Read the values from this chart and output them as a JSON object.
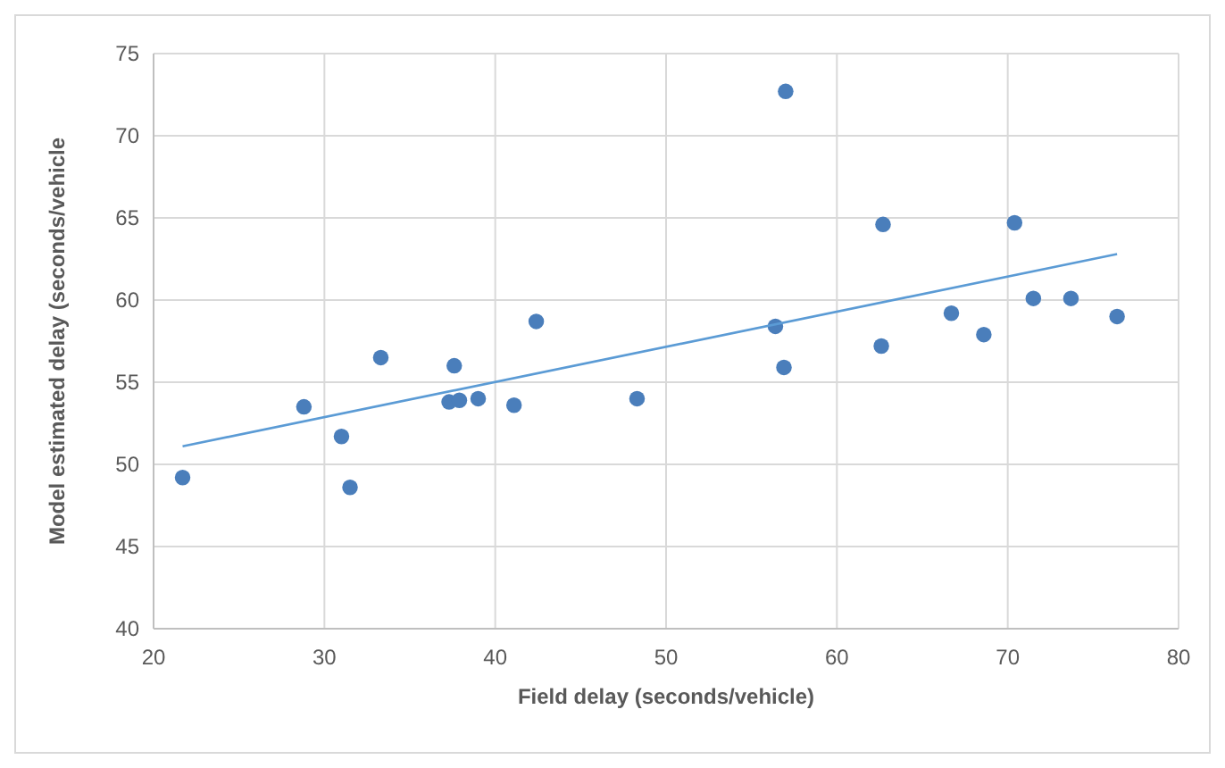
{
  "chart_data": {
    "type": "scatter",
    "xlabel": "Field delay (seconds/vehicle)",
    "ylabel": "Model estimated delay (seconds/vehicle",
    "xlim": [
      20,
      80
    ],
    "xticks": [
      20,
      30,
      40,
      50,
      60,
      70,
      80
    ],
    "ylim": [
      40,
      75
    ],
    "yticks": [
      40,
      45,
      50,
      55,
      60,
      65,
      70,
      75
    ],
    "grid": true,
    "marker": "circle",
    "series": [
      {
        "color": "#4a7ebb",
        "x": [
          21.7,
          28.8,
          31,
          31.5,
          33.3,
          37.3,
          37.6,
          37.9,
          39,
          41.1,
          42.4,
          48.3,
          56.4,
          56.9,
          57,
          62.6,
          62.7,
          66.7,
          68.6,
          70.4,
          71.5,
          73.7,
          76.4
        ],
        "values": [
          49.2,
          53.5,
          51.7,
          48.6,
          56.5,
          53.8,
          56,
          53.9,
          54,
          53.6,
          58.7,
          54,
          58.4,
          55.9,
          72.7,
          57.2,
          64.6,
          59.2,
          57.9,
          64.7,
          60.1,
          60.1,
          59
        ]
      },
      {
        "type": "line",
        "color": "#5b9bd5",
        "line_style": "solid",
        "marker": "none",
        "x": [
          21.7,
          76.4
        ],
        "values": [
          51.1,
          62.8
        ]
      }
    ]
  }
}
